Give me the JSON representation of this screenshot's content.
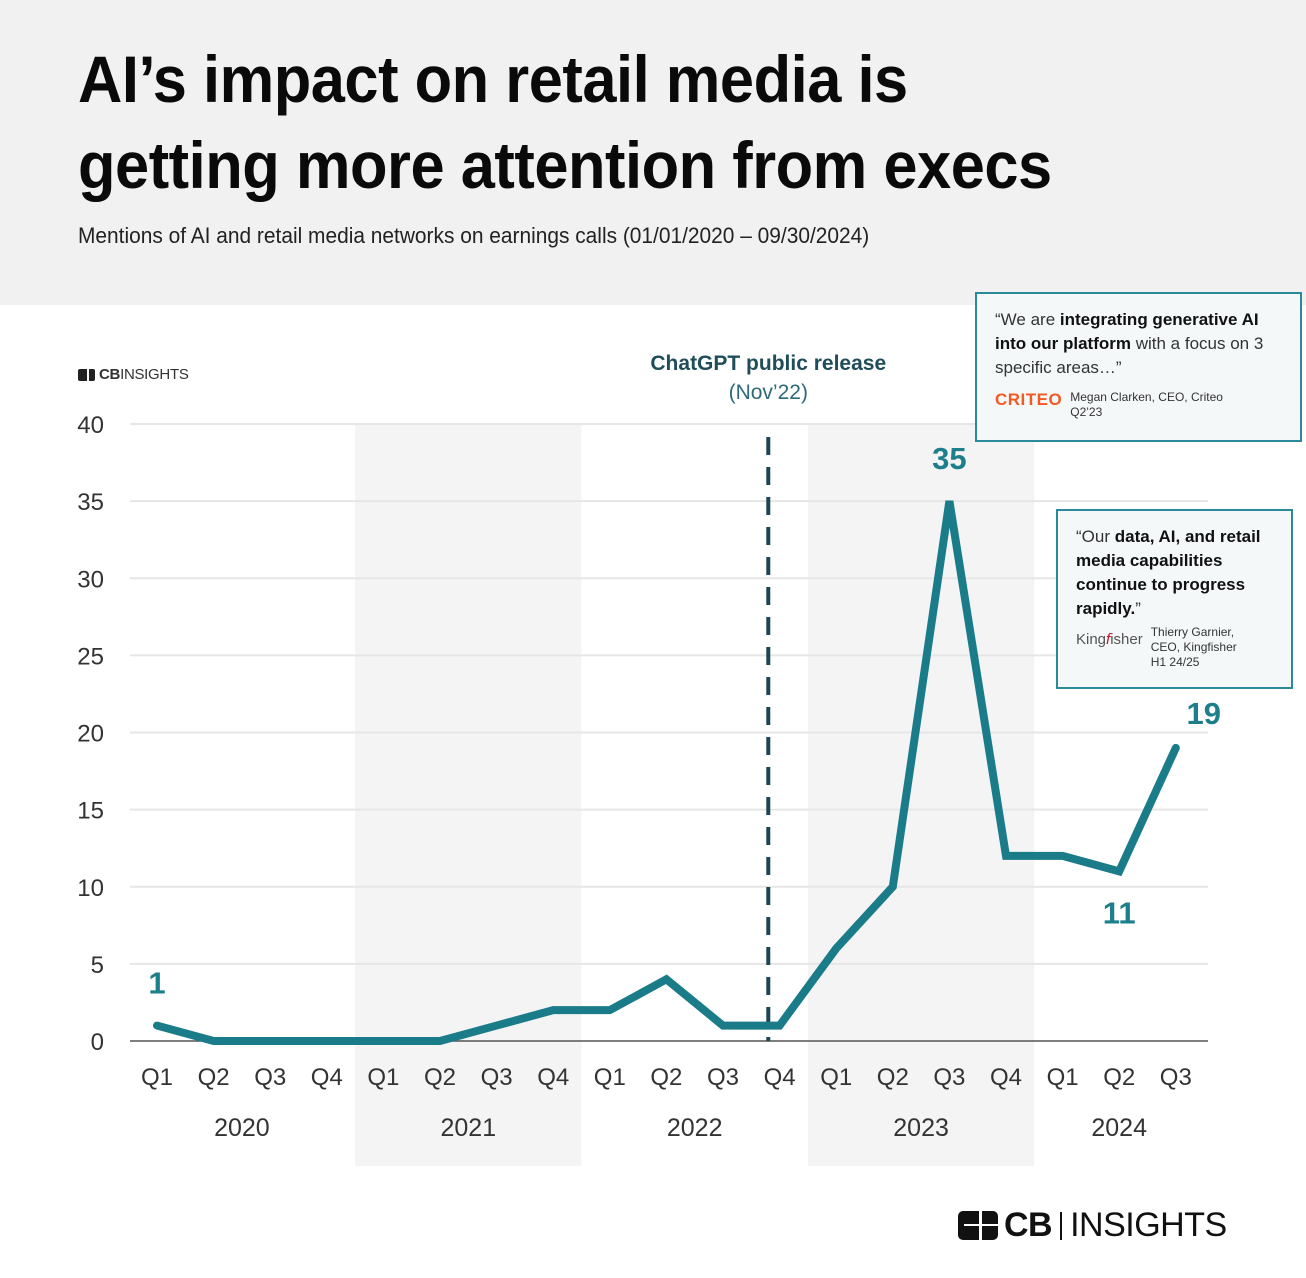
{
  "header": {
    "title_line1": "AI’s impact on retail media is",
    "title_line2": "getting more attention from execs",
    "subtitle": "Mentions of AI and retail media networks on earnings calls (01/01/2020 – 09/30/2024)"
  },
  "branding": {
    "small_logo_bold": "CB",
    "small_logo_rest": "INSIGHTS",
    "footer_logo_bold": "CB",
    "footer_logo_rest": "INSIGHTS"
  },
  "quotes": [
    {
      "pre": "“We are ",
      "bold": "integrating generative AI into our platform",
      "post": " with a focus on 3 specific areas…”",
      "company_logo": "CRITEO",
      "speaker": "Megan Clarken, CEO, Criteo",
      "period": "Q2’23"
    },
    {
      "pre": "“Our ",
      "bold": "data, AI, and retail media capabilities continue to progress rapidly.",
      "post": "”",
      "company_logo_a": "King",
      "company_logo_b": "f",
      "company_logo_c": "isher",
      "speaker_line1": "Thierry Garnier,",
      "speaker_line2": "CEO, Kingfisher",
      "period": "H1 24/25"
    }
  ],
  "colors": {
    "line": "#1a7b89",
    "label": "#1d7e8c",
    "dashed_marker": "#1c4656",
    "grid": "#e6e6e6",
    "band": "#f4f4f4",
    "axis": "#555555"
  },
  "chart_data": {
    "type": "line",
    "title": "AI’s impact on retail media is getting more attention from execs",
    "subtitle": "Mentions of AI and retail media networks on earnings calls (01/01/2020 – 09/30/2024)",
    "xlabel": "",
    "ylabel": "",
    "ylim": [
      0,
      40
    ],
    "yticks": [
      0,
      5,
      10,
      15,
      20,
      25,
      30,
      35,
      40
    ],
    "grid": true,
    "categories": [
      "Q1",
      "Q2",
      "Q3",
      "Q4",
      "Q1",
      "Q2",
      "Q3",
      "Q4",
      "Q1",
      "Q2",
      "Q3",
      "Q4",
      "Q1",
      "Q2",
      "Q3",
      "Q4",
      "Q1",
      "Q2",
      "Q3"
    ],
    "years": [
      {
        "label": "2020",
        "quarters": 4,
        "shaded": false
      },
      {
        "label": "2021",
        "quarters": 4,
        "shaded": true
      },
      {
        "label": "2022",
        "quarters": 4,
        "shaded": false
      },
      {
        "label": "2023",
        "quarters": 4,
        "shaded": true
      },
      {
        "label": "2024",
        "quarters": 3,
        "shaded": false
      }
    ],
    "series": [
      {
        "name": "Mentions",
        "values": [
          1,
          0,
          0,
          0,
          0,
          0,
          1,
          2,
          2,
          4,
          1,
          1,
          6,
          10,
          35,
          12,
          12,
          11,
          19
        ]
      }
    ],
    "data_labels": [
      {
        "index": 0,
        "text": "1",
        "position": "above"
      },
      {
        "index": 14,
        "text": "35",
        "position": "above"
      },
      {
        "index": 17,
        "text": "11",
        "position": "below"
      },
      {
        "index": 18,
        "text": "19",
        "position": "above-right"
      }
    ],
    "annotations": [
      {
        "type": "vline",
        "at_index": 10.8,
        "style": "dashed",
        "title": "ChatGPT public release",
        "subtitle": "(Nov’22)"
      }
    ]
  }
}
